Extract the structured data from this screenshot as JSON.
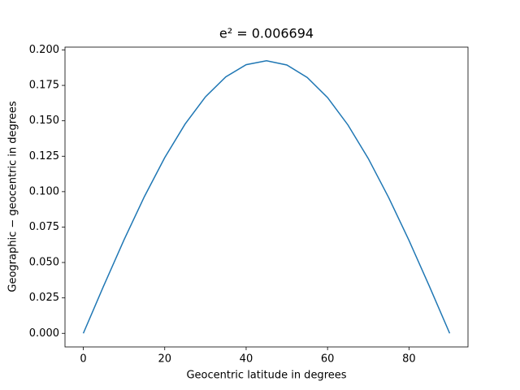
{
  "chart_data": {
    "type": "line",
    "title": "e² = 0.006694",
    "x_label": "Geocentric latitude in degrees",
    "y_label": "Geographic − geocentric in degrees",
    "x": [
      0,
      5,
      10,
      15,
      20,
      25,
      30,
      35,
      40,
      45,
      50,
      55,
      60,
      65,
      70,
      75,
      80,
      85,
      90
    ],
    "series": [
      {
        "color": "#1f77b4",
        "values": [
          0,
          0.0335,
          0.066,
          0.0965,
          0.124,
          0.1477,
          0.1669,
          0.181,
          0.1896,
          0.1924,
          0.1894,
          0.1806,
          0.1664,
          0.1471,
          0.1234,
          0.0959,
          0.0656,
          0.0333,
          0
        ]
      }
    ],
    "xlim": [
      -4.5,
      94.5
    ],
    "xticks": [
      0,
      20,
      40,
      60,
      80
    ],
    "ylim": [
      -0.0096,
      0.202
    ],
    "yticks": [
      {
        "value": 0,
        "label": "0.000"
      },
      {
        "value": 0.025,
        "label": "0.025"
      },
      {
        "value": 0.05,
        "label": "0.050"
      },
      {
        "value": 0.075,
        "label": "0.075"
      },
      {
        "value": 0.1,
        "label": "0.100"
      },
      {
        "value": 0.125,
        "label": "0.125"
      },
      {
        "value": 0.15,
        "label": "0.150"
      },
      {
        "value": 0.175,
        "label": "0.175"
      },
      {
        "value": 0.2,
        "label": "0.200"
      }
    ],
    "grid": false
  }
}
